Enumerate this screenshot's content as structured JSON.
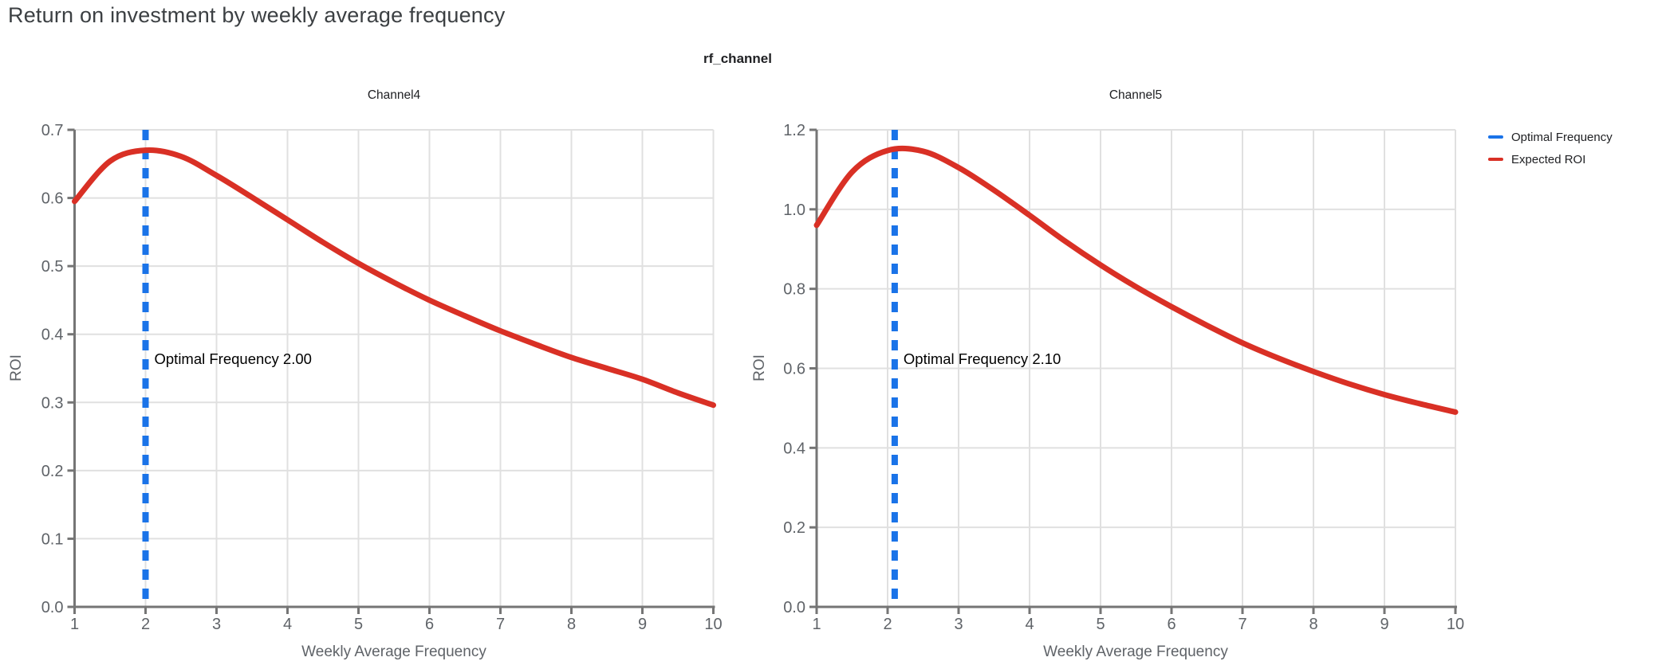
{
  "page": {
    "title": "Return on investment by weekly average frequency",
    "facet_title": "rf_channel"
  },
  "legend": {
    "items": [
      {
        "label": "Optimal Frequency",
        "color": "#1a73e8"
      },
      {
        "label": "Expected ROI",
        "color": "#d93025"
      }
    ]
  },
  "colors": {
    "optimal_line": "#1a73e8",
    "roi_curve": "#d93025",
    "gridline": "#e0e0e0",
    "axis": "#757575",
    "tick_text": "#5f6368"
  },
  "chart_data": [
    {
      "type": "line",
      "title": "Channel4",
      "xlabel": "Weekly Average Frequency",
      "ylabel": "ROI",
      "xlim": [
        1,
        10
      ],
      "ylim": [
        0,
        0.7
      ],
      "xticks": [
        1,
        2,
        3,
        4,
        5,
        6,
        7,
        8,
        9,
        10
      ],
      "yticks": [
        0.0,
        0.1,
        0.2,
        0.3,
        0.4,
        0.5,
        0.6,
        0.7
      ],
      "grid": true,
      "optimal_frequency": 2.0,
      "annotation": "Optimal Frequency  2.00",
      "series": [
        {
          "name": "Expected ROI",
          "x": [
            1,
            1.5,
            2,
            2.5,
            3,
            3.5,
            4,
            4.5,
            5,
            5.5,
            6,
            6.5,
            7,
            7.5,
            8,
            8.5,
            9,
            9.5,
            10
          ],
          "y": [
            0.595,
            0.654,
            0.67,
            0.661,
            0.633,
            0.601,
            0.568,
            0.535,
            0.504,
            0.476,
            0.45,
            0.427,
            0.405,
            0.385,
            0.366,
            0.35,
            0.334,
            0.314,
            0.296
          ]
        }
      ]
    },
    {
      "type": "line",
      "title": "Channel5",
      "xlabel": "Weekly Average Frequency",
      "ylabel": "ROI",
      "xlim": [
        1,
        10
      ],
      "ylim": [
        0,
        1.2
      ],
      "xticks": [
        1,
        2,
        3,
        4,
        5,
        6,
        7,
        8,
        9,
        10
      ],
      "yticks": [
        0.0,
        0.2,
        0.4,
        0.6,
        0.8,
        1.0,
        1.2
      ],
      "grid": true,
      "optimal_frequency": 2.1,
      "annotation": "Optimal Frequency  2.10",
      "series": [
        {
          "name": "Expected ROI",
          "x": [
            1,
            1.5,
            2,
            2.5,
            3,
            3.5,
            4,
            4.5,
            5,
            5.5,
            6,
            6.5,
            7,
            7.5,
            8,
            8.5,
            9,
            9.5,
            10
          ],
          "y": [
            0.96,
            1.094,
            1.148,
            1.146,
            1.105,
            1.048,
            0.985,
            0.92,
            0.86,
            0.805,
            0.755,
            0.708,
            0.664,
            0.626,
            0.592,
            0.561,
            0.534,
            0.511,
            0.49
          ]
        }
      ]
    }
  ]
}
